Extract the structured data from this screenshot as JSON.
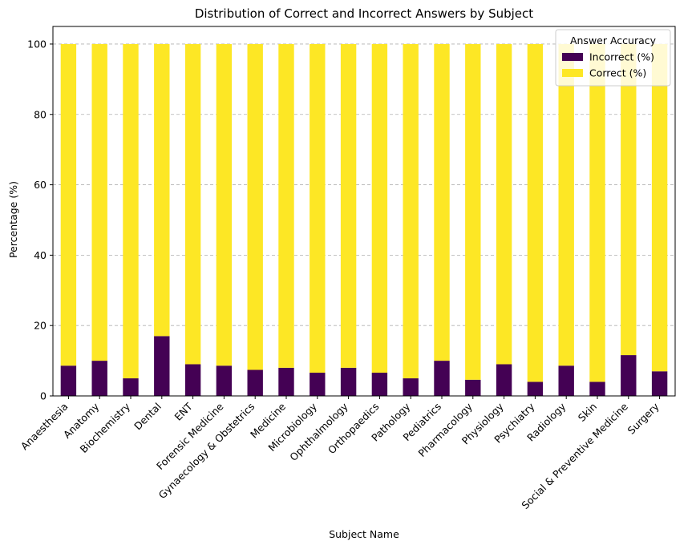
{
  "chart_data": {
    "type": "bar",
    "stacked": true,
    "title": "Distribution of Correct and Incorrect Answers by Subject",
    "xlabel": "Subject Name",
    "ylabel": "Percentage (%)",
    "ylim": [
      0,
      105
    ],
    "yticks": [
      0,
      20,
      40,
      60,
      80,
      100
    ],
    "grid": "y-dashed",
    "legend": {
      "title": "Answer Accuracy",
      "placement": "top-right"
    },
    "categories": [
      "Anaesthesia",
      "Anatomy",
      "Biochemistry",
      "Dental",
      "ENT",
      "Forensic Medicine",
      "Gynaecology & Obstetrics",
      "Medicine",
      "Microbiology",
      "Ophthalmology",
      "Orthopaedics",
      "Pathology",
      "Pediatrics",
      "Pharmacology",
      "Physiology",
      "Psychiatry",
      "Radiology",
      "Skin",
      "Social & Preventive Medicine",
      "Surgery"
    ],
    "series": [
      {
        "name": "Incorrect (%)",
        "color": "#440154",
        "values": [
          8.6,
          10.0,
          5.0,
          17.0,
          9.0,
          8.6,
          7.4,
          8.0,
          6.6,
          8.0,
          6.6,
          5.0,
          10.0,
          4.6,
          9.0,
          4.0,
          8.6,
          4.0,
          11.6,
          7.0
        ]
      },
      {
        "name": "Correct (%)",
        "color": "#fde725",
        "values": [
          91.4,
          90.0,
          95.0,
          83.0,
          91.0,
          91.4,
          92.6,
          92.0,
          93.4,
          92.0,
          93.4,
          95.0,
          90.0,
          95.4,
          91.0,
          96.0,
          91.4,
          96.0,
          88.4,
          93.0
        ]
      }
    ]
  }
}
